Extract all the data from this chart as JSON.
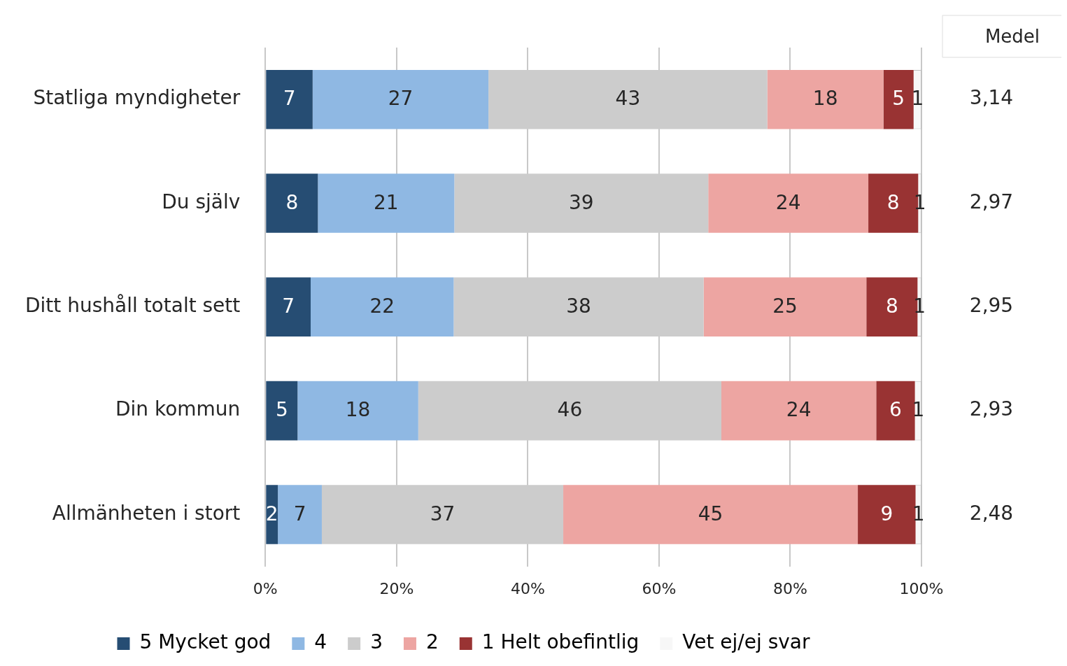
{
  "chart_data": {
    "type": "bar",
    "orientation": "horizontal",
    "stacked": true,
    "categories": [
      "Statliga myndigheter",
      "Du själv",
      "Ditt hushåll totalt sett",
      "Din kommun",
      "Allmänheten i stort"
    ],
    "series": [
      {
        "name": "5 Mycket god",
        "color": "#264d73",
        "values": [
          7.2,
          8.0,
          6.9,
          4.9,
          1.9
        ],
        "value_labels": [
          "7",
          "8",
          "7",
          "5",
          "2"
        ]
      },
      {
        "name": "4",
        "color": "#8fb8e3",
        "values": [
          26.8,
          20.8,
          21.8,
          18.4,
          6.7
        ],
        "value_labels": [
          "27",
          "21",
          "22",
          "18",
          "7"
        ]
      },
      {
        "name": "3",
        "color": "#cccccc",
        "values": [
          42.5,
          38.7,
          38.1,
          46.2,
          36.8
        ],
        "value_labels": [
          "43",
          "39",
          "38",
          "46",
          "37"
        ]
      },
      {
        "name": "2",
        "color": "#eda5a2",
        "values": [
          17.7,
          24.4,
          24.8,
          23.6,
          44.9
        ],
        "value_labels": [
          "18",
          "24",
          "25",
          "24",
          "45"
        ]
      },
      {
        "name": "1 Helt obefintlig",
        "color": "#993333",
        "values": [
          4.6,
          7.6,
          7.8,
          5.9,
          8.8
        ],
        "value_labels": [
          "5",
          "8",
          "8",
          "6",
          "9"
        ]
      },
      {
        "name": "Vet ej/ej svar",
        "color": "#f7f7f7",
        "values": [
          1.2,
          0.5,
          0.6,
          1.0,
          0.9
        ],
        "value_labels": [
          "1",
          "1",
          "1",
          "1",
          "1"
        ]
      }
    ],
    "xlim": [
      0,
      100
    ],
    "xticks": [
      {
        "value": 0,
        "label": "0%"
      },
      {
        "value": 20,
        "label": "20%"
      },
      {
        "value": 40,
        "label": "40%"
      },
      {
        "value": 60,
        "label": "60%"
      },
      {
        "value": 80,
        "label": "80%"
      },
      {
        "value": 100,
        "label": "100%"
      }
    ],
    "grid": "x",
    "legend": "bottom",
    "annotations": [
      "Medel",
      "3,14",
      "2,97",
      "2,95",
      "2,93",
      "2,48"
    ]
  }
}
